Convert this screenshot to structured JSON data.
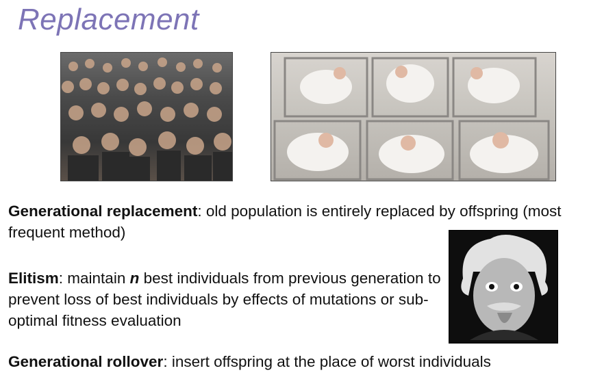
{
  "slide": {
    "title": "Replacement"
  },
  "images": {
    "crowd": "crowd-photo",
    "nursery": "nursery-babies-photo",
    "einstein": "einstein-tongue-photo"
  },
  "paragraphs": {
    "generational": {
      "term": "Generational replacement",
      "text": ": old population is entirely replaced by offspring (most frequent method)"
    },
    "elitism": {
      "term": "Elitism",
      "text_a": ": maintain ",
      "n": "n",
      "text_b": " best individuals from previous generation to prevent loss of best individuals by effects of mutations or sub-optimal fitness evaluation"
    },
    "rollover": {
      "term": "Generational rollover",
      "text": ": insert offspring at the place of worst individuals"
    }
  }
}
